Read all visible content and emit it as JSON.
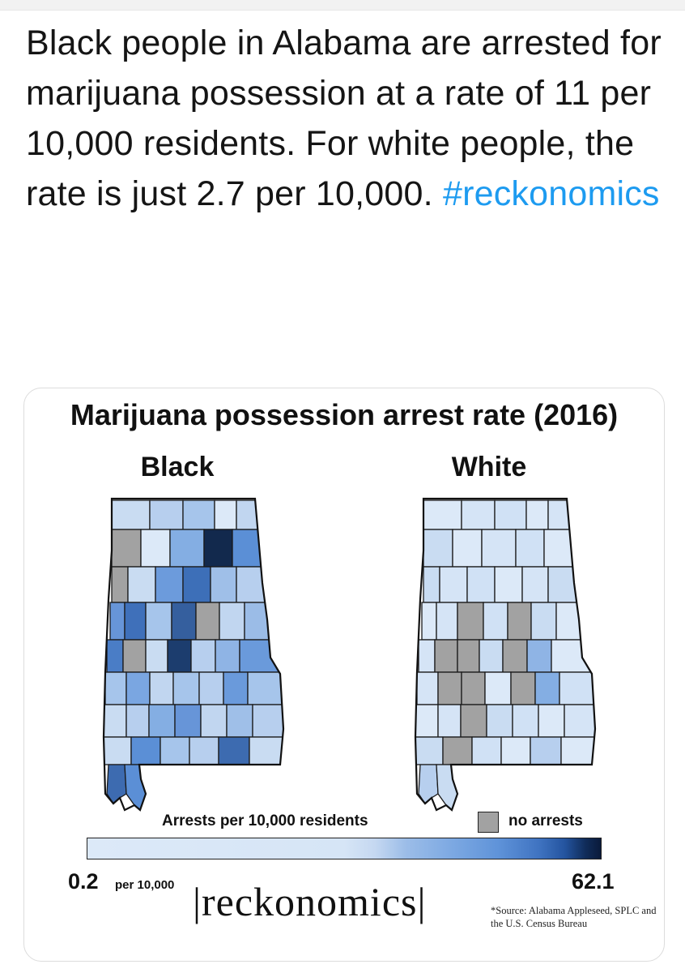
{
  "tweet": {
    "text": "Black people in Alabama are arrested for marijuana possession at a rate of 11 per 10,000 residents. For white people, the rate is just 2.7 per 10,000.",
    "hashtag": "#reckonomics"
  },
  "card": {
    "title": "Marijuana possession arrest rate (2016)",
    "left_map_label": "Black",
    "right_map_label": "White",
    "legend_title": "Arrests per 10,000 residents",
    "no_arrests_label": "no arrests",
    "scale_min": "0.2",
    "scale_min_unit": "per 10,000",
    "scale_max": "62.1",
    "brand": "|reckonomics|",
    "source": "*Source: Alabama Appleseed, SPLC and the U.S. Census Bureau"
  },
  "colors": {
    "hashtag": "#1d9bf0",
    "no_arrests": "#a2a2a2",
    "scale_low": "#dce9f8",
    "scale_high": "#0a1a3a"
  },
  "maps": {
    "black": {
      "counties": [
        "#c9dcf2",
        "#b7cfee",
        "#a6c5eb",
        "#dce9f8",
        "#c1d6f0",
        "#a2a2a2",
        "#dce9f8",
        "#84aee3",
        "#12294d",
        "#5b8fd6",
        "#a2a2a2",
        "#c9dcf2",
        "#6c9bdc",
        "#3d6fb8",
        "#9fbfe8",
        "#b7cfee",
        "#6795d8",
        "#3f70ba",
        "#a6c5eb",
        "#355f9e",
        "#a2a2a2",
        "#c1d6f0",
        "#9bbce7",
        "#4a7dc6",
        "#a2a2a2",
        "#c9dcf2",
        "#1c3d6e",
        "#b7cfee",
        "#8fb4e5",
        "#6a9adb",
        "#a6c5eb",
        "#7aa6e1",
        "#c1d6f0",
        "#a6c5eb",
        "#b7cfee",
        "#6a9adb",
        "#a6c5eb",
        "#c9dcf2",
        "#b7cfee",
        "#84aee3",
        "#6795d8",
        "#c1d6f0",
        "#9fbfe8",
        "#b7cfee",
        "#c9dcf2",
        "#5b8fd6",
        "#a6c5eb",
        "#b7cfee",
        "#3d6bb0",
        "#c9dcf2",
        "#b7cfee",
        "#5b8fd6"
      ]
    },
    "white": {
      "counties": [
        "#dce9f8",
        "#d5e4f6",
        "#d0e1f5",
        "#dce9f8",
        "#d5e4f6",
        "#c9dcf2",
        "#dce9f8",
        "#d5e4f6",
        "#d0e1f5",
        "#dce9f8",
        "#c9dcf2",
        "#d5e4f6",
        "#d0e1f5",
        "#dce9f8",
        "#d5e4f6",
        "#c9dcf2",
        "#dce9f8",
        "#d5e4f6",
        "#a2a2a2",
        "#d0e1f5",
        "#a2a2a2",
        "#c9dcf2",
        "#dce9f8",
        "#d5e4f6",
        "#a2a2a2",
        "#a2a2a2",
        "#c9dcf2",
        "#a2a2a2",
        "#8fb4e5",
        "#dce9f8",
        "#d5e4f6",
        "#a2a2a2",
        "#a2a2a2",
        "#dce9f8",
        "#a2a2a2",
        "#84aee3",
        "#d0e1f5",
        "#dce9f8",
        "#d5e4f6",
        "#a2a2a2",
        "#c9dcf2",
        "#d0e1f5",
        "#dce9f8",
        "#d5e4f6",
        "#c9dcf2",
        "#a2a2a2",
        "#d0e1f5",
        "#dce9f8",
        "#b7cfee",
        "#dce9f8",
        "#d5e4f6",
        "#c9dcf2"
      ]
    }
  }
}
